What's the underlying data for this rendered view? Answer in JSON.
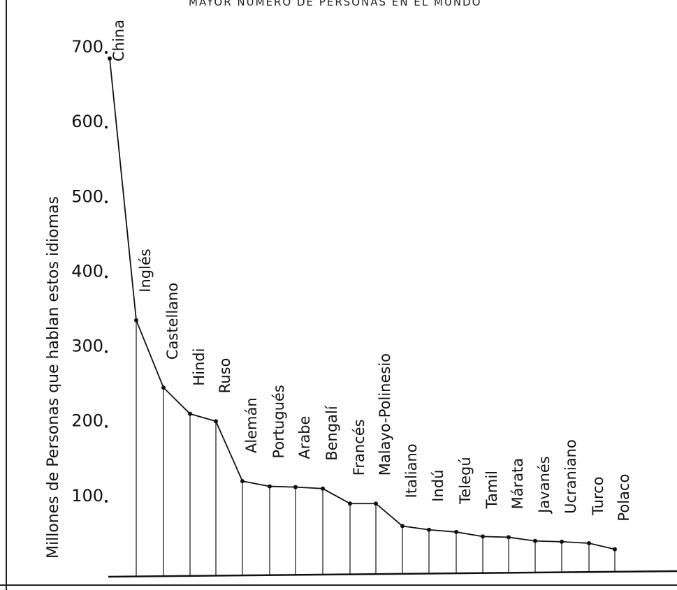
{
  "chart_data": {
    "type": "line",
    "title": "MAYOR NUMERO DE PERSONAS EN EL MUNDO",
    "ylabel": "Millones de Personas que hablan estos idiomas",
    "xlabel": "",
    "ylim": [
      0,
      700
    ],
    "yticks": [
      100,
      200,
      300,
      400,
      500,
      600,
      700
    ],
    "categories": [
      "China",
      "Inglés",
      "Castellano",
      "Hindi",
      "Ruso",
      "Alemán",
      "Portugués",
      "Arabe",
      "Bengalí",
      "Francés",
      "Malayo-Polinesio",
      "Italiano",
      "Indú",
      "Telegú",
      "Tamil",
      "Márata",
      "Javanés",
      "Ucraniano",
      "Turco",
      "Polaco"
    ],
    "values": [
      690,
      340,
      250,
      215,
      205,
      125,
      118,
      117,
      115,
      95,
      95,
      65,
      60,
      57,
      51,
      50,
      45,
      44,
      42,
      34
    ],
    "grid": false,
    "legend": "none"
  }
}
